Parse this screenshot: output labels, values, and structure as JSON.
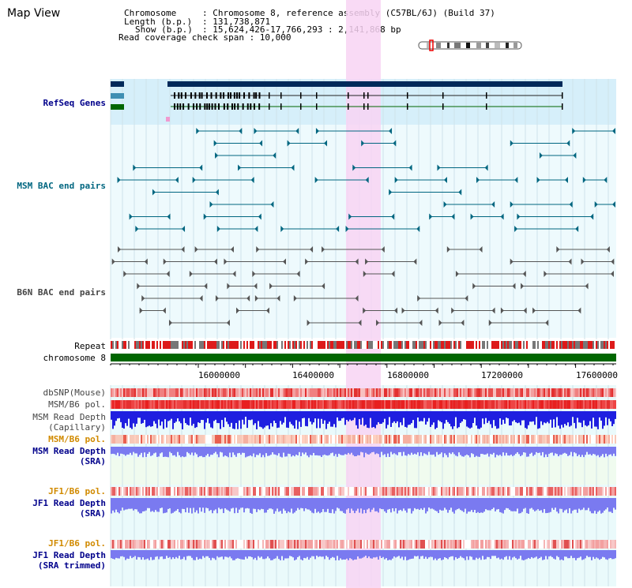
{
  "page": {
    "title": "Map View"
  },
  "header": {
    "chromosome_key": "Chromosome",
    "chromosome_val": ": Chromosome 8, reference assembly (C57BL/6J) (Build 37)",
    "length_key": "Length (b.p.)",
    "length_val": ": 131,738,871",
    "show_key": "Show (b.p.)",
    "show_val": ": 15,624,426-17,766,293 : 2,141,868 bp",
    "coverage": "Read coverage check span : 10,000"
  },
  "tracks": {
    "refseq": "RefSeq Genes",
    "msm_bac": "MSM BAC end pairs",
    "b6n_bac": "B6N BAC end pairs",
    "repeat": "Repeat",
    "chromosome": "chromosome 8",
    "dbsnp": "dbSNP(Mouse)",
    "msm_b6_pol": "MSM/B6 pol.",
    "msm_read_depth_cap_1": "MSM Read Depth",
    "msm_read_depth_cap_2": "(Capillary)",
    "msm_b6_pol_2": "MSM/B6 pol.",
    "msm_read_depth_sra_1": "MSM Read Depth",
    "msm_read_depth_sra_2": "(SRA)",
    "jf1_b6_pol": "JF1/B6 pol.",
    "jf1_read_depth_sra_1": "JF1 Read Depth",
    "jf1_read_depth_sra_2": "(SRA)",
    "jf1_b6_pol_2": "JF1/B6 pol.",
    "jf1_read_depth_trim_1": "JF1 Read Depth",
    "jf1_read_depth_trim_2": "(SRA trimmed)"
  },
  "axis": {
    "ticks": [
      "16000000",
      "16400000",
      "16800000",
      "17200000",
      "17600000"
    ],
    "range": [
      15624426,
      17766293
    ]
  },
  "colors": {
    "refseq_bg": "#d6effa",
    "bac_bg": "#eefafd",
    "highlight": "#f8d3f3",
    "chromosome_bar": "#006600",
    "gene_dark": "#00295a",
    "gene_mid": "#3f8fb3",
    "gene_green": "#006600",
    "msm_feature": "#006680",
    "b6n_feature": "#555555",
    "depth_blue": "#1f1fe0",
    "depth_light": "#7a7af0",
    "snp_red": "#e52222"
  }
}
